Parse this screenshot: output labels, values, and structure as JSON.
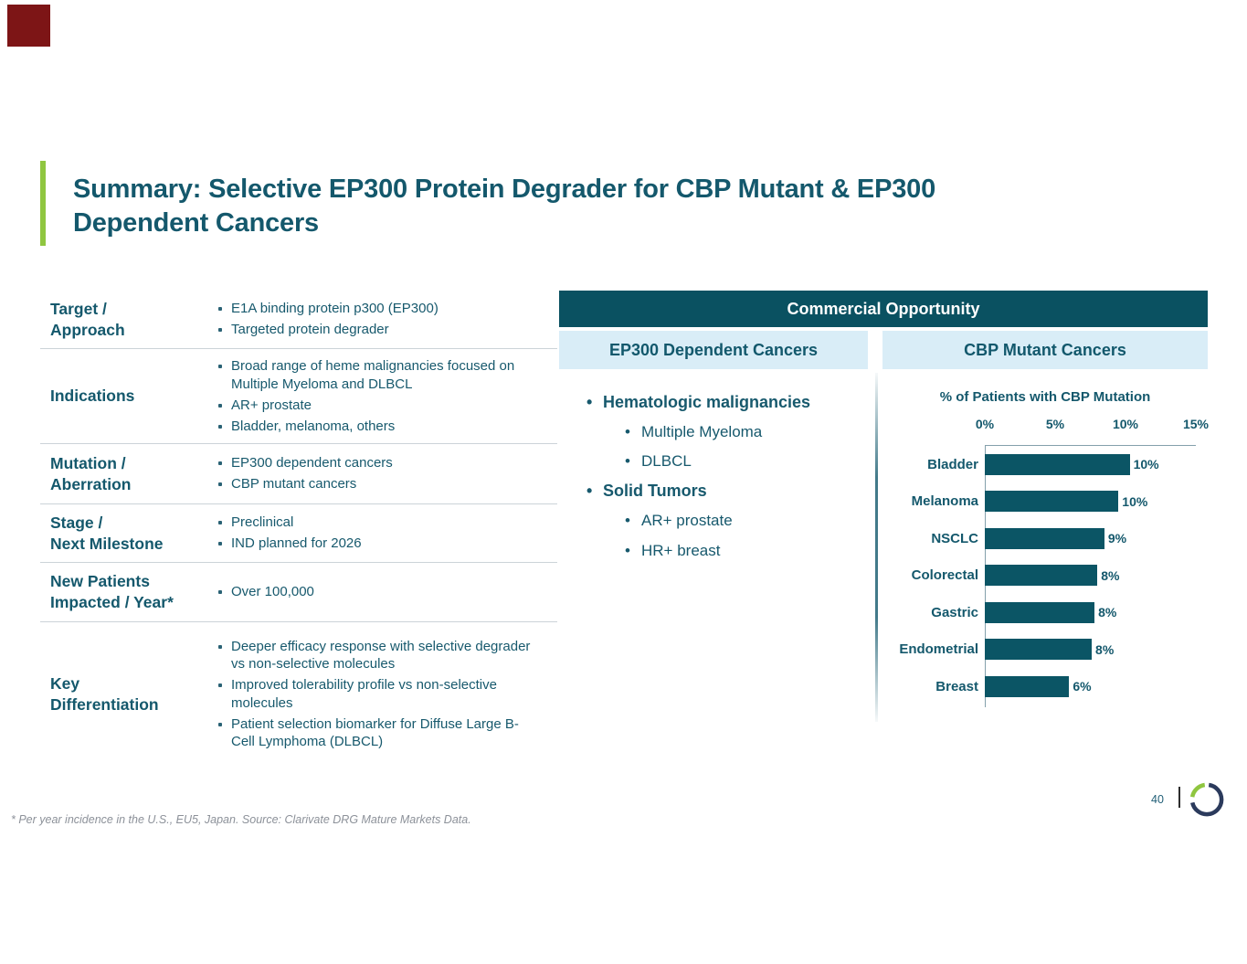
{
  "slide": {
    "title_lines": [
      "Summary: Selective EP300 Protein Degrader for CBP Mutant & EP300",
      "Dependent Cancers"
    ],
    "footnote": "* Per year incidence in the U.S., EU5, Japan. Source: Clarivate DRG Mature Markets Data.",
    "page_number": "40"
  },
  "profile_table": {
    "rows": [
      {
        "label_lines": [
          "Target /",
          "Approach"
        ],
        "items": [
          "E1A binding protein p300 (EP300)",
          "Targeted protein degrader"
        ]
      },
      {
        "label_lines": [
          "Indications"
        ],
        "items": [
          "Broad range of heme malignancies focused on Multiple Myeloma and DLBCL",
          "AR+ prostate",
          "Bladder, melanoma, others"
        ]
      },
      {
        "label_lines": [
          "Mutation /",
          "Aberration"
        ],
        "items": [
          "EP300 dependent cancers",
          "CBP mutant cancers"
        ]
      },
      {
        "label_lines": [
          "Stage /",
          "Next Milestone"
        ],
        "items": [
          "Preclinical",
          "IND planned for 2026"
        ]
      },
      {
        "label_lines": [
          "New Patients",
          "Impacted / Year*"
        ],
        "items": [
          "Over 100,000"
        ]
      },
      {
        "label_lines": [
          "Key",
          "Differentiation"
        ],
        "items": [
          "Deeper efficacy response with selective degrader vs non-selective molecules",
          "Improved tolerability profile vs non-selective molecules",
          "Patient selection biomarker for Diffuse Large B-Cell Lymphoma (DLBCL)"
        ]
      }
    ]
  },
  "commercial": {
    "header": "Commercial Opportunity",
    "left_panel_title": "EP300 Dependent Cancers",
    "right_panel_title": "CBP Mutant Cancers",
    "ep300_list": [
      {
        "label": "Hematologic malignancies",
        "children": [
          "Multiple Myeloma",
          "DLBCL"
        ]
      },
      {
        "label": "Solid Tumors",
        "children": [
          "AR+ prostate",
          "HR+ breast"
        ]
      }
    ]
  },
  "chart_data": {
    "type": "bar",
    "orientation": "horizontal",
    "title": "% of Patients with CBP Mutation",
    "categories": [
      "Bladder",
      "Melanoma",
      "NSCLC",
      "Colorectal",
      "Gastric",
      "Endometrial",
      "Breast"
    ],
    "values": [
      10.3,
      9.5,
      8.5,
      8.0,
      7.8,
      7.6,
      6.0
    ],
    "value_labels": [
      "10%",
      "10%",
      "9%",
      "8%",
      "8%",
      "8%",
      "6%"
    ],
    "x_ticks": [
      "0%",
      "5%",
      "10%",
      "15%"
    ],
    "xlim": [
      0,
      15
    ],
    "grid": false,
    "bar_color": "#0b5565"
  },
  "colors": {
    "teal_text": "#14586c",
    "header_teal": "#0a5161",
    "light_blue_panel": "#d9edf7",
    "green_accent": "#8fc640",
    "bar_fill": "#0b5565",
    "footnote_gray": "#8c9199",
    "logo_navy": "#2b3a5c",
    "logo_green": "#8fc640",
    "red_marker": "#7d1516"
  }
}
